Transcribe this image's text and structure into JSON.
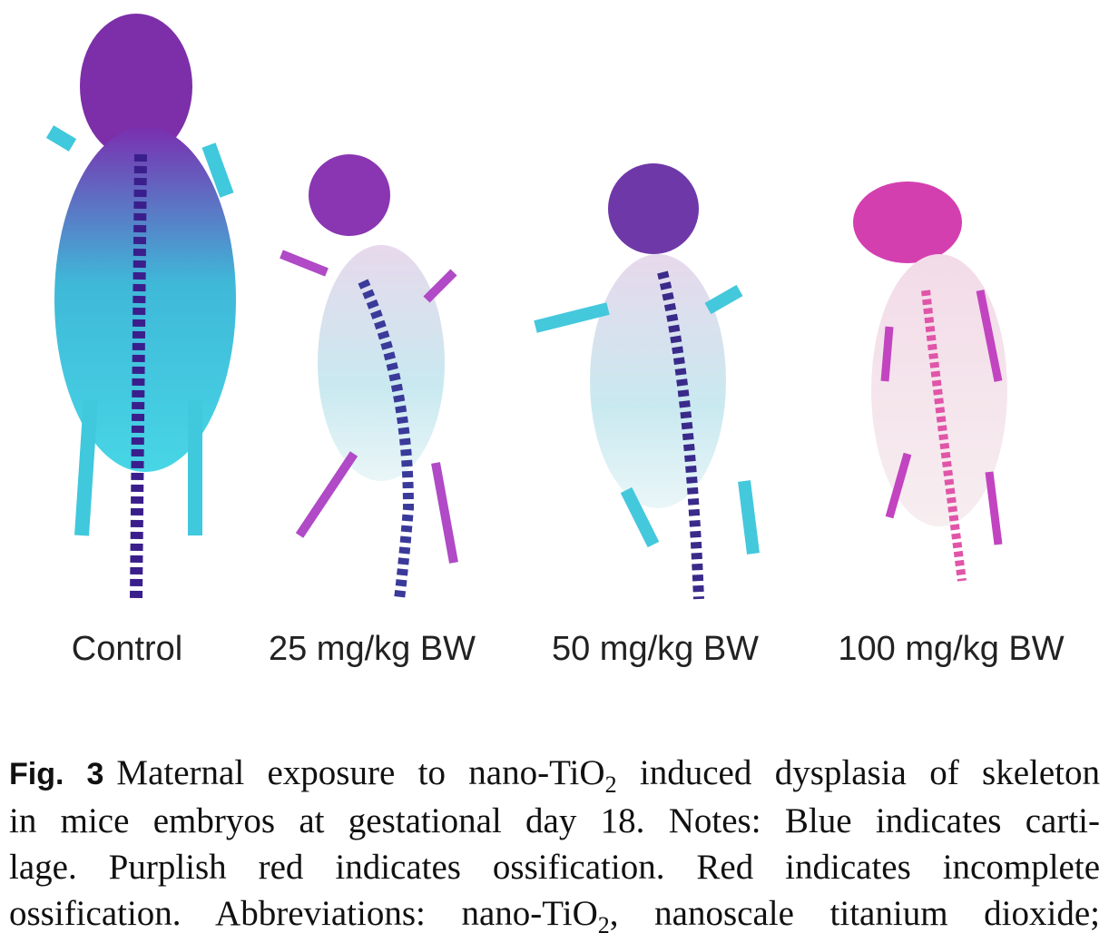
{
  "figure": {
    "panel_labels": [
      "Control",
      "25 mg/kg BW",
      "50 mg/kg BW",
      "100 mg/kg BW"
    ]
  },
  "caption": {
    "label": "Fig. 3",
    "lines": [
      [
        {
          "text": "Maternal exposure to nano-TiO"
        },
        {
          "sub": "2"
        },
        {
          "text": " induced dysplasia of skeleton"
        }
      ],
      [
        {
          "text": "in mice embryos at gestational day 18. Notes: Blue indicates carti-"
        }
      ],
      [
        {
          "text": "lage. Purplish red indicates ossification. Red indicates incomplete"
        }
      ],
      [
        {
          "text": "ossification. Abbreviations: nano-TiO"
        },
        {
          "sub": "2"
        },
        {
          "text": ", nanoscale titanium dioxide;"
        }
      ]
    ]
  }
}
